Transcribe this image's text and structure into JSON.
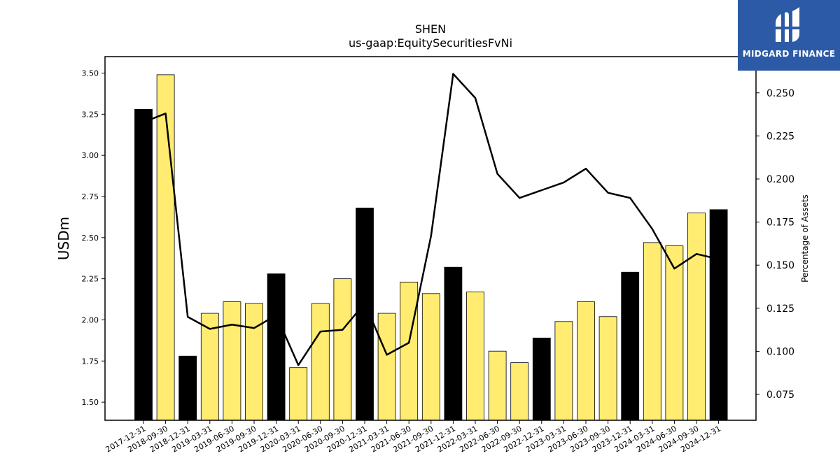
{
  "brand": {
    "name": "MIDGARD FINANCE",
    "color": "#2d5aa6"
  },
  "chart_data": {
    "type": "bar",
    "title": "SHEN",
    "subtitle": "us-gaap:EquitySecuritiesFvNi",
    "ylabel": "USDm",
    "y2label": "Percentage of Assets",
    "ylim": [
      1.39,
      3.6
    ],
    "y2lim": [
      0.06,
      0.271
    ],
    "yticks": [
      "1.50",
      "1.75",
      "2.00",
      "2.25",
      "2.50",
      "2.75",
      "3.00",
      "3.25",
      "3.50"
    ],
    "y2ticks": [
      "0.075",
      "0.100",
      "0.125",
      "0.150",
      "0.175",
      "0.200",
      "0.225",
      "0.250"
    ],
    "categories": [
      "2017-12-31",
      "2018-09-30",
      "2018-12-31",
      "2019-03-31",
      "2019-06-30",
      "2019-09-30",
      "2019-12-31",
      "2020-03-31",
      "2020-06-30",
      "2020-09-30",
      "2020-12-31",
      "2021-03-31",
      "2021-06-30",
      "2021-09-30",
      "2021-12-31",
      "2022-03-31",
      "2022-06-30",
      "2022-09-30",
      "2022-12-31",
      "2023-03-31",
      "2023-06-30",
      "2023-09-30",
      "2023-12-31",
      "2024-03-31",
      "2024-06-30",
      "2024-09-30",
      "2024-12-31"
    ],
    "series": [
      {
        "kind": "bar",
        "values": [
          3.28,
          3.49,
          1.78,
          2.04,
          2.11,
          2.1,
          2.28,
          1.71,
          2.1,
          2.25,
          2.68,
          2.04,
          2.23,
          2.16,
          2.32,
          2.17,
          1.81,
          1.74,
          1.89,
          1.99,
          2.11,
          2.02,
          2.29,
          2.47,
          2.45,
          2.65,
          2.67
        ],
        "year_end_color": "#000000",
        "quarter_color": "#ffec70"
      },
      {
        "kind": "line",
        "axis": "right",
        "color": "#000000",
        "values": [
          0.233,
          0.238,
          0.12,
          0.113,
          0.1155,
          0.1135,
          0.121,
          0.092,
          0.1115,
          0.1125,
          0.128,
          0.098,
          0.105,
          0.167,
          0.261,
          0.247,
          0.203,
          0.189,
          0.1935,
          0.198,
          0.206,
          0.192,
          0.189,
          0.171,
          0.148,
          0.1565,
          0.1535
        ]
      }
    ],
    "grid": false
  }
}
